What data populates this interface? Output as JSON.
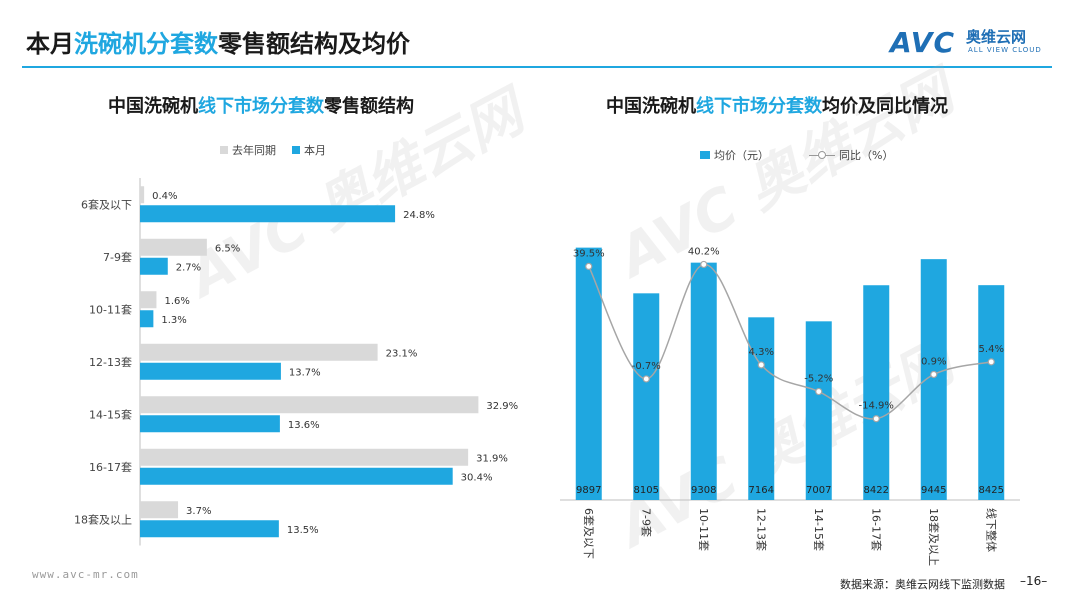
{
  "page": {
    "title_prefix": "本月",
    "title_highlight": "洗碗机分套数",
    "title_suffix": "零售额结构及均价",
    "footer_url": "www.avc-mr.com",
    "footer_source": "数据来源：奥维云网线下监测数据",
    "page_number": "–16–"
  },
  "logo": {
    "mark": "AVC",
    "cn": "奥维云网",
    "en": "ALL VIEW CLOUD"
  },
  "colors": {
    "accent": "#1fa7e0",
    "last_year": "#d9d9d9",
    "line": "#a6a6a6",
    "brand": "#1f6fb5"
  },
  "left_chart": {
    "title_prefix": "中国洗碗机",
    "title_highlight": "线下市场分套数",
    "title_suffix": "零售额结构"
  },
  "right_chart": {
    "title_prefix": "中国洗碗机",
    "title_highlight": "线下市场分套数",
    "title_suffix": "均价及同比情况"
  },
  "chart_data": [
    {
      "type": "bar",
      "orientation": "horizontal",
      "categories": [
        "6套及以下",
        "7-9套",
        "10-11套",
        "12-13套",
        "14-15套",
        "16-17套",
        "18套及以上"
      ],
      "series": [
        {
          "name": "去年同期",
          "values": [
            0.4,
            6.5,
            1.6,
            23.1,
            32.9,
            31.9,
            3.7
          ],
          "labels": [
            "0.4%",
            "6.5%",
            "1.6%",
            "23.1%",
            "32.9%",
            "31.9%",
            "3.7%"
          ]
        },
        {
          "name": "本月",
          "values": [
            24.8,
            2.7,
            1.3,
            13.7,
            13.6,
            30.4,
            13.5
          ],
          "labels": [
            "24.8%",
            "2.7%",
            "1.3%",
            "13.7%",
            "13.6%",
            "30.4%",
            "13.5%"
          ]
        }
      ],
      "xlim": [
        0,
        35
      ],
      "legend": "top-left",
      "grid": false
    },
    {
      "type": "bar",
      "categories": [
        "6套及以下",
        "7-9套",
        "10-11套",
        "12-13套",
        "14-15套",
        "16-17套",
        "18套及以上",
        "线下整体"
      ],
      "series": [
        {
          "name": "均价（元）",
          "type": "bar",
          "values": [
            9897,
            8105,
            9308,
            7164,
            7007,
            8422,
            9445,
            8425
          ],
          "labels": [
            "9897",
            "8105",
            "9308",
            "7164",
            "7007",
            "8422",
            "9445",
            "8425"
          ]
        },
        {
          "name": "同比（%）",
          "type": "line",
          "values": [
            39.5,
            -0.7,
            40.2,
            4.3,
            -5.2,
            -14.9,
            0.9,
            5.4
          ],
          "labels": [
            "39.5%",
            "-0.7%",
            "40.2%",
            "4.3%",
            "-5.2%",
            "-14.9%",
            "0.9%",
            "5.4%"
          ]
        }
      ],
      "legend": "top-center",
      "grid": false
    }
  ]
}
